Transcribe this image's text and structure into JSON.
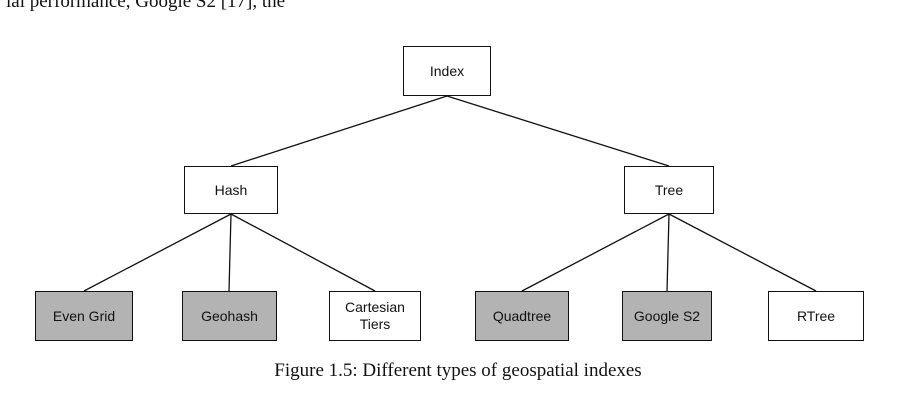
{
  "header_fragment": "ial performance, Google S2 [17], the",
  "nodes": [
    {
      "id": "index",
      "label": "Index",
      "shaded": false
    },
    {
      "id": "hash",
      "label": "Hash",
      "shaded": false
    },
    {
      "id": "tree",
      "label": "Tree",
      "shaded": false
    },
    {
      "id": "even-grid",
      "label": "Even Grid",
      "shaded": true
    },
    {
      "id": "geohash",
      "label": "Geohash",
      "shaded": true
    },
    {
      "id": "cartesian-tiers",
      "label": "Cartesian\nTiers",
      "shaded": false
    },
    {
      "id": "quadtree",
      "label": "Quadtree",
      "shaded": true
    },
    {
      "id": "google-s2",
      "label": "Google S2",
      "shaded": true
    },
    {
      "id": "rtree",
      "label": "RTree",
      "shaded": false
    }
  ],
  "edges": [
    [
      "index",
      "hash"
    ],
    [
      "index",
      "tree"
    ],
    [
      "hash",
      "even-grid"
    ],
    [
      "hash",
      "geohash"
    ],
    [
      "hash",
      "cartesian-tiers"
    ],
    [
      "tree",
      "quadtree"
    ],
    [
      "tree",
      "google-s2"
    ],
    [
      "tree",
      "rtree"
    ]
  ],
  "caption": "Figure 1.5: Different types of geospatial indexes"
}
